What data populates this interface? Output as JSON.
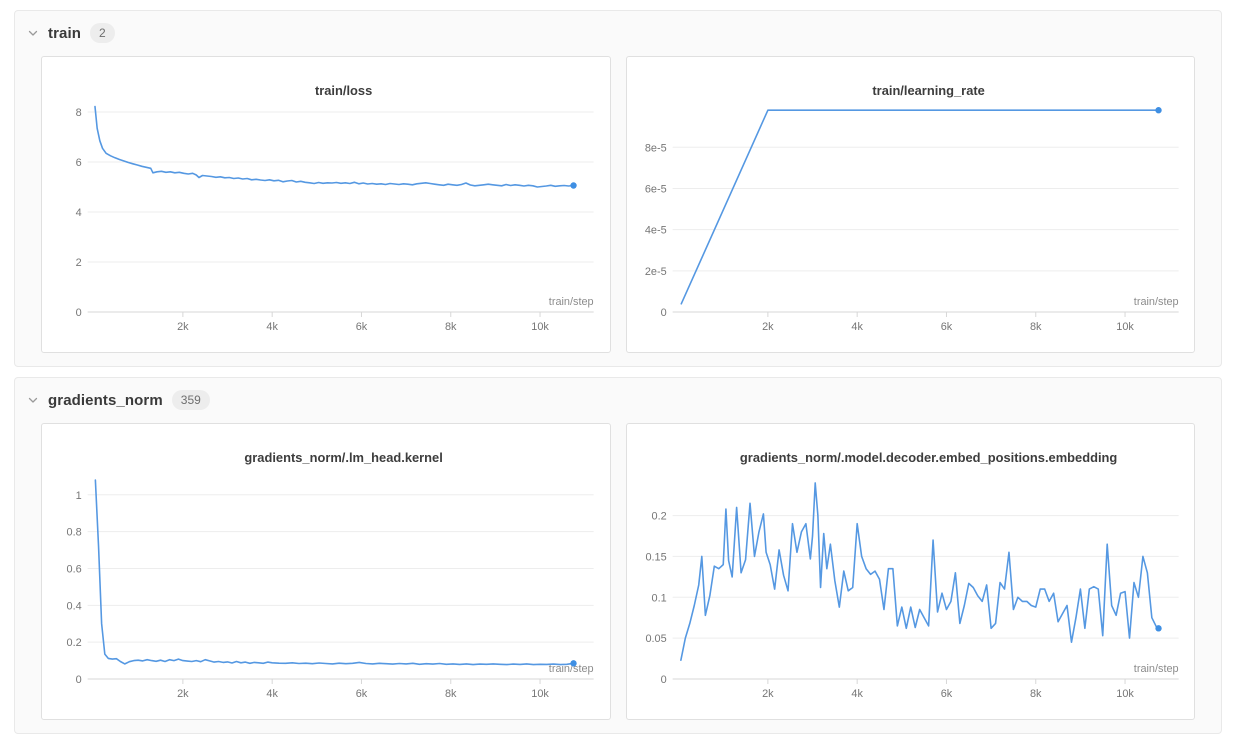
{
  "colors": {
    "line": "#5598e2",
    "end_dot": "#3f8fe3",
    "grid": "#ededed",
    "axis": "#d7d7d7",
    "tick_text": "#767676",
    "title_text": "#3d3d3d",
    "xlabel_text": "#8c8c8c"
  },
  "sections": [
    {
      "label": "train",
      "count": "2"
    },
    {
      "label": "gradients_norm",
      "count": "359"
    }
  ],
  "chart_data": [
    {
      "type": "line",
      "title": "train/loss",
      "xlabel": "train/step",
      "xlim": [
        0,
        11200
      ],
      "ylim": [
        0,
        8.4
      ],
      "grid": true,
      "x_tick_values": [
        2000,
        4000,
        6000,
        8000,
        10000
      ],
      "x_tick_labels": [
        "2k",
        "4k",
        "6k",
        "8k",
        "10k"
      ],
      "y_tick_values": [
        0,
        2,
        4,
        6,
        8
      ],
      "y_tick_labels": [
        "0",
        "2",
        "4",
        "6",
        "8"
      ],
      "end_dot": true,
      "series": [
        {
          "name": "train/loss",
          "x": [
            30,
            80,
            140,
            200,
            280,
            380,
            480,
            580,
            680,
            780,
            880,
            980,
            1080,
            1180,
            1280,
            1330,
            1420,
            1520,
            1620,
            1720,
            1820,
            1920,
            2020,
            2120,
            2220,
            2300,
            2360,
            2440,
            2540,
            2640,
            2740,
            2840,
            2940,
            3040,
            3140,
            3240,
            3340,
            3440,
            3540,
            3640,
            3740,
            3840,
            3940,
            4040,
            4140,
            4240,
            4340,
            4440,
            4540,
            4640,
            4740,
            4840,
            4940,
            5040,
            5140,
            5240,
            5340,
            5440,
            5540,
            5640,
            5740,
            5840,
            5940,
            6040,
            6140,
            6240,
            6340,
            6440,
            6540,
            6640,
            6740,
            6840,
            6940,
            7040,
            7140,
            7240,
            7340,
            7440,
            7540,
            7640,
            7740,
            7840,
            7940,
            8040,
            8140,
            8240,
            8340,
            8440,
            8540,
            8640,
            8740,
            8840,
            8940,
            9040,
            9140,
            9240,
            9340,
            9440,
            9540,
            9640,
            9740,
            9840,
            9940,
            10040,
            10140,
            10240,
            10340,
            10440,
            10540,
            10640,
            10750
          ],
          "y": [
            8.22,
            7.35,
            6.85,
            6.55,
            6.35,
            6.25,
            6.17,
            6.1,
            6.04,
            5.98,
            5.93,
            5.88,
            5.83,
            5.79,
            5.75,
            5.57,
            5.61,
            5.63,
            5.59,
            5.61,
            5.57,
            5.59,
            5.55,
            5.52,
            5.55,
            5.48,
            5.38,
            5.46,
            5.44,
            5.42,
            5.39,
            5.41,
            5.37,
            5.38,
            5.34,
            5.36,
            5.32,
            5.34,
            5.29,
            5.31,
            5.28,
            5.26,
            5.29,
            5.25,
            5.27,
            5.21,
            5.24,
            5.26,
            5.2,
            5.23,
            5.19,
            5.17,
            5.14,
            5.18,
            5.15,
            5.17,
            5.16,
            5.18,
            5.15,
            5.17,
            5.14,
            5.19,
            5.13,
            5.16,
            5.12,
            5.14,
            5.11,
            5.13,
            5.1,
            5.14,
            5.12,
            5.1,
            5.13,
            5.11,
            5.09,
            5.13,
            5.15,
            5.17,
            5.14,
            5.11,
            5.09,
            5.07,
            5.11,
            5.09,
            5.07,
            5.1,
            5.16,
            5.08,
            5.05,
            5.07,
            5.09,
            5.11,
            5.09,
            5.07,
            5.05,
            5.1,
            5.06,
            5.09,
            5.07,
            5.04,
            5.07,
            5.05,
            5.0,
            5.02,
            5.04,
            5.07,
            5.03,
            5.05,
            5.06,
            5.04,
            5.06
          ]
        }
      ]
    },
    {
      "type": "line",
      "title": "train/learning_rate",
      "xlabel": "train/step",
      "xlim": [
        0,
        11200
      ],
      "ylim": [
        0,
        0.000102
      ],
      "grid": true,
      "x_tick_values": [
        2000,
        4000,
        6000,
        8000,
        10000
      ],
      "x_tick_labels": [
        "2k",
        "4k",
        "6k",
        "8k",
        "10k"
      ],
      "y_tick_values": [
        0,
        2e-05,
        4e-05,
        6e-05,
        8e-05
      ],
      "y_tick_labels": [
        "0",
        "2e-5",
        "4e-5",
        "6e-5",
        "8e-5"
      ],
      "end_dot": true,
      "series": [
        {
          "name": "train/learning_rate",
          "x": [
            60,
            2000,
            10750
          ],
          "y": [
            4e-06,
            9.8e-05,
            9.8e-05
          ]
        }
      ]
    },
    {
      "type": "line",
      "title": "gradients_norm/.lm_head.kernel",
      "xlabel": "train/step",
      "xlim": [
        0,
        11200
      ],
      "ylim": [
        0,
        1.14
      ],
      "grid": true,
      "x_tick_values": [
        2000,
        4000,
        6000,
        8000,
        10000
      ],
      "x_tick_labels": [
        "2k",
        "4k",
        "6k",
        "8k",
        "10k"
      ],
      "y_tick_values": [
        0,
        0.2,
        0.4,
        0.6,
        0.8,
        1
      ],
      "y_tick_labels": [
        "0",
        "0.2",
        "0.4",
        "0.6",
        "0.8",
        "1"
      ],
      "end_dot": true,
      "series": [
        {
          "name": "gradients_norm/.lm_head.kernel",
          "x": [
            40,
            110,
            180,
            250,
            330,
            420,
            510,
            600,
            700,
            800,
            900,
            1000,
            1100,
            1200,
            1300,
            1400,
            1500,
            1600,
            1700,
            1800,
            1900,
            2000,
            2100,
            2200,
            2300,
            2400,
            2500,
            2600,
            2700,
            2800,
            2900,
            3000,
            3100,
            3200,
            3300,
            3400,
            3500,
            3600,
            3700,
            3800,
            3900,
            4000,
            4150,
            4300,
            4450,
            4600,
            4750,
            4900,
            5050,
            5200,
            5350,
            5500,
            5650,
            5800,
            5950,
            6100,
            6250,
            6400,
            6550,
            6700,
            6850,
            7000,
            7150,
            7300,
            7450,
            7600,
            7750,
            7900,
            8050,
            8200,
            8350,
            8500,
            8650,
            8800,
            8950,
            9100,
            9250,
            9400,
            9550,
            9700,
            9850,
            10000,
            10150,
            10300,
            10450,
            10600,
            10750
          ],
          "y": [
            1.08,
            0.72,
            0.3,
            0.135,
            0.112,
            0.108,
            0.11,
            0.095,
            0.082,
            0.094,
            0.1,
            0.102,
            0.098,
            0.105,
            0.1,
            0.096,
            0.102,
            0.095,
            0.105,
            0.1,
            0.108,
            0.1,
            0.097,
            0.095,
            0.1,
            0.094,
            0.105,
            0.098,
            0.092,
            0.095,
            0.09,
            0.093,
            0.087,
            0.095,
            0.088,
            0.092,
            0.085,
            0.09,
            0.088,
            0.085,
            0.092,
            0.088,
            0.086,
            0.085,
            0.088,
            0.084,
            0.086,
            0.083,
            0.087,
            0.084,
            0.082,
            0.086,
            0.083,
            0.085,
            0.09,
            0.084,
            0.082,
            0.085,
            0.083,
            0.081,
            0.084,
            0.082,
            0.085,
            0.08,
            0.083,
            0.081,
            0.084,
            0.08,
            0.082,
            0.079,
            0.082,
            0.078,
            0.081,
            0.08,
            0.082,
            0.08,
            0.078,
            0.081,
            0.079,
            0.082,
            0.078,
            0.08,
            0.079,
            0.081,
            0.078,
            0.08,
            0.085
          ]
        }
      ]
    },
    {
      "type": "line",
      "title": "gradients_norm/.model.decoder.embed_positions.embedding",
      "xlabel": "train/step",
      "xlim": [
        0,
        11200
      ],
      "ylim": [
        0,
        0.257
      ],
      "grid": true,
      "x_tick_values": [
        2000,
        4000,
        6000,
        8000,
        10000
      ],
      "x_tick_labels": [
        "2k",
        "4k",
        "6k",
        "8k",
        "10k"
      ],
      "y_tick_values": [
        0,
        0.05,
        0.1,
        0.15,
        0.2
      ],
      "y_tick_labels": [
        "0",
        "0.05",
        "0.1",
        "0.15",
        "0.2"
      ],
      "end_dot": true,
      "series": [
        {
          "name": "gradients_norm/.model.decoder.embed_positions.embedding",
          "x": [
            50,
            150,
            250,
            350,
            450,
            520,
            600,
            700,
            800,
            900,
            1000,
            1060,
            1120,
            1200,
            1300,
            1400,
            1500,
            1600,
            1700,
            1800,
            1900,
            1960,
            2050,
            2150,
            2250,
            2350,
            2450,
            2550,
            2650,
            2750,
            2850,
            2950,
            3000,
            3060,
            3120,
            3180,
            3250,
            3320,
            3400,
            3500,
            3600,
            3700,
            3800,
            3900,
            4000,
            4100,
            4200,
            4300,
            4400,
            4500,
            4600,
            4700,
            4800,
            4900,
            5000,
            5100,
            5200,
            5300,
            5400,
            5500,
            5600,
            5700,
            5800,
            5900,
            6000,
            6100,
            6200,
            6300,
            6400,
            6500,
            6600,
            6700,
            6800,
            6900,
            7000,
            7100,
            7200,
            7300,
            7400,
            7500,
            7600,
            7700,
            7800,
            7900,
            8000,
            8100,
            8200,
            8300,
            8400,
            8500,
            8600,
            8700,
            8800,
            8900,
            9000,
            9100,
            9200,
            9300,
            9400,
            9500,
            9600,
            9700,
            9800,
            9900,
            10000,
            10100,
            10200,
            10300,
            10400,
            10500,
            10600,
            10700,
            10750
          ],
          "y": [
            0.023,
            0.05,
            0.068,
            0.09,
            0.115,
            0.15,
            0.078,
            0.102,
            0.138,
            0.135,
            0.14,
            0.208,
            0.145,
            0.125,
            0.21,
            0.13,
            0.146,
            0.215,
            0.15,
            0.18,
            0.202,
            0.155,
            0.14,
            0.11,
            0.158,
            0.127,
            0.108,
            0.19,
            0.155,
            0.18,
            0.19,
            0.147,
            0.175,
            0.24,
            0.2,
            0.112,
            0.178,
            0.135,
            0.165,
            0.12,
            0.088,
            0.132,
            0.108,
            0.112,
            0.19,
            0.15,
            0.135,
            0.128,
            0.132,
            0.122,
            0.085,
            0.135,
            0.135,
            0.065,
            0.088,
            0.062,
            0.088,
            0.063,
            0.085,
            0.075,
            0.065,
            0.17,
            0.082,
            0.105,
            0.085,
            0.095,
            0.13,
            0.068,
            0.09,
            0.117,
            0.112,
            0.102,
            0.095,
            0.115,
            0.062,
            0.068,
            0.118,
            0.11,
            0.155,
            0.085,
            0.1,
            0.095,
            0.095,
            0.09,
            0.088,
            0.11,
            0.11,
            0.095,
            0.105,
            0.07,
            0.08,
            0.09,
            0.045,
            0.075,
            0.11,
            0.062,
            0.11,
            0.113,
            0.11,
            0.053,
            0.165,
            0.09,
            0.078,
            0.105,
            0.107,
            0.05,
            0.118,
            0.1,
            0.15,
            0.13,
            0.075,
            0.064,
            0.062
          ]
        }
      ]
    }
  ]
}
